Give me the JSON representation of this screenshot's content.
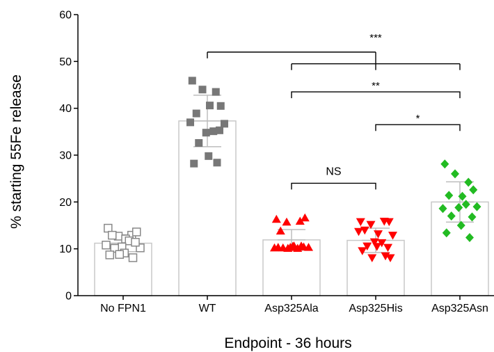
{
  "chart_data": {
    "type": "bar",
    "title": "",
    "xlabel": "Endpoint - 36 hours",
    "ylabel": "% starting 55Fe release",
    "ylim": [
      0,
      60
    ],
    "yticks": [
      0,
      10,
      20,
      30,
      40,
      50,
      60
    ],
    "grid": false,
    "categories": [
      "No FPN1",
      "WT",
      "Asp325Ala",
      "Asp325His",
      "Asp325Asn"
    ],
    "series": [
      {
        "values": [
          11.2,
          37.3,
          11.9,
          11.8,
          20.0
        ],
        "sd": [
          1.8,
          5.5,
          2.2,
          2.6,
          4.3
        ],
        "marker": [
          "square-open",
          "square",
          "triangle-up",
          "triangle-down",
          "diamond"
        ],
        "color": [
          "#888888",
          "#777777",
          "#ff0000",
          "#ff0000",
          "#22bb22"
        ],
        "points": [
          [
            14.4,
            12.9,
            12.7,
            13.6,
            12.9,
            12.1,
            10.2,
            10.8,
            11.7,
            10.4,
            11.4,
            10.1,
            9.1,
            8.7,
            8.1,
            8.8
          ],
          [
            45.9,
            43.5,
            44.0,
            40.5,
            38.9,
            40.6,
            36.7,
            37.0,
            35.1,
            34.8,
            35.3,
            32.6,
            29.8,
            28.2,
            28.4
          ],
          [
            16.3,
            15.9,
            15.7,
            16.6,
            13.8,
            10.6,
            10.3,
            10.2,
            10.1,
            10.3,
            10.4,
            10.2,
            10.5,
            10.3,
            10.6,
            10.1
          ],
          [
            15.8,
            15.9,
            15.2,
            15.8,
            14.0,
            13.2,
            12.9,
            13.7,
            11.3,
            11.5,
            10.3,
            10.6,
            10.5,
            9.6,
            8.5,
            8.1,
            8.1
          ],
          [
            28.1,
            24.2,
            26.0,
            22.6,
            21.4,
            21.2,
            19.0,
            18.6,
            19.5,
            18.8,
            16.8,
            17.0,
            15.0,
            13.4,
            12.4
          ]
        ]
      }
    ],
    "significance": [
      {
        "from": 1,
        "to": [
          2,
          3,
          4
        ],
        "label": "***",
        "y": 52
      },
      {
        "from": 2,
        "to": 4,
        "label": "**",
        "y": 43.5
      },
      {
        "from": 3,
        "to": 4,
        "label": "*",
        "y": 36.5
      },
      {
        "from": 2,
        "to": 3,
        "label": "NS",
        "y": 24
      }
    ]
  }
}
